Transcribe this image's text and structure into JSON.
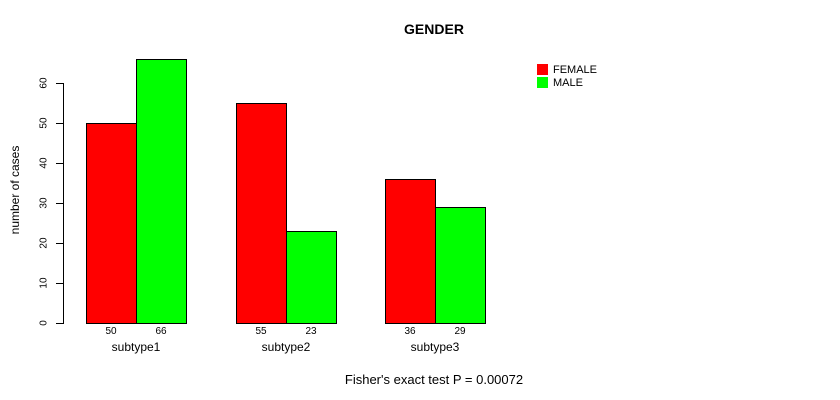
{
  "chart_data": {
    "type": "bar",
    "title": "GENDER",
    "categories": [
      "subtype1",
      "subtype2",
      "subtype3"
    ],
    "series": [
      {
        "name": "FEMALE",
        "color": "#FF0000",
        "values": [
          50,
          55,
          36
        ]
      },
      {
        "name": "MALE",
        "color": "#00FF00",
        "values": [
          66,
          23,
          29
        ]
      }
    ],
    "xlabel": "",
    "ylabel": "number of cases",
    "ylim": [
      0,
      60
    ],
    "yticks": [
      0,
      10,
      20,
      30,
      40,
      50,
      60
    ],
    "bar_value_labels": [
      [
        50,
        55,
        36
      ],
      [
        66,
        23,
        29
      ]
    ],
    "bar_border_color": "#000000",
    "axis_color": "#000000",
    "background_color": "#FFFFFF",
    "grid": false,
    "legend_position": "top-right-inside",
    "annotation": "Fisher's exact test P = 0.00072"
  }
}
